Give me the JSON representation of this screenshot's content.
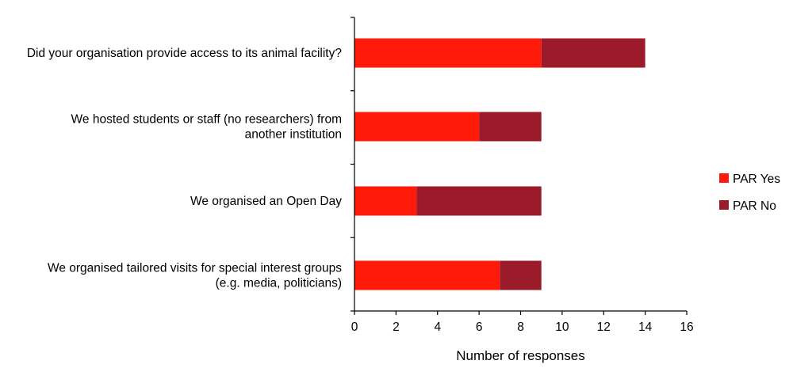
{
  "chart_data": {
    "type": "bar",
    "orientation": "horizontal",
    "stacked": true,
    "categories": [
      [
        "Did your organisation provide access to its animal facility?"
      ],
      [
        "We hosted students or staff (no researchers) from",
        "another institution"
      ],
      [
        "We organised an Open Day"
      ],
      [
        "We organised tailored visits for special interest groups",
        "(e.g. media, politicians)"
      ]
    ],
    "series": [
      {
        "name": "PAR Yes",
        "values": [
          9,
          6,
          3,
          7
        ],
        "color": "#ff1a0a"
      },
      {
        "name": "PAR No",
        "values": [
          5,
          3,
          6,
          2
        ],
        "color": "#9b1b2a"
      }
    ],
    "xlabel": "Number of responses",
    "ylabel": "",
    "xlim": [
      0,
      16
    ],
    "xticks": [
      0,
      2,
      4,
      6,
      8,
      10,
      12,
      14,
      16
    ],
    "grid": false,
    "legend_position": "right"
  }
}
